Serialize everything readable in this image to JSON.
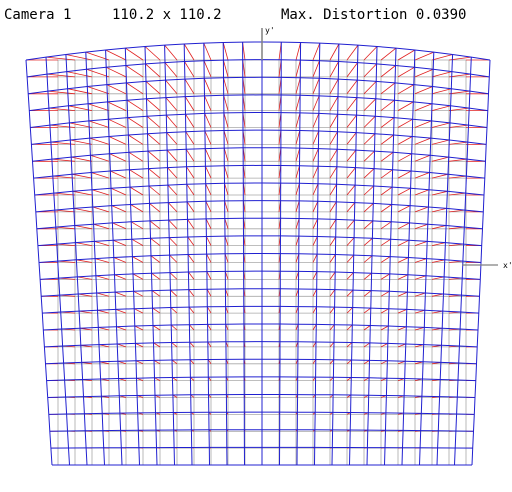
{
  "header": {
    "camera_label": "Camera 1",
    "dimensions": "110.2 x 110.2",
    "distortion_label": "Max. Distortion 0.0390"
  },
  "axes": {
    "x_label": "x'",
    "y_label": "y'"
  },
  "colors": {
    "reference_grid": "#a8a8a8",
    "distorted_grid": "#2020d0",
    "displacement": "#e02020",
    "axis": "#808080"
  },
  "chart_data": {
    "type": "distortion-grid",
    "grid_lines": 25,
    "max_distortion": 0.039
  }
}
